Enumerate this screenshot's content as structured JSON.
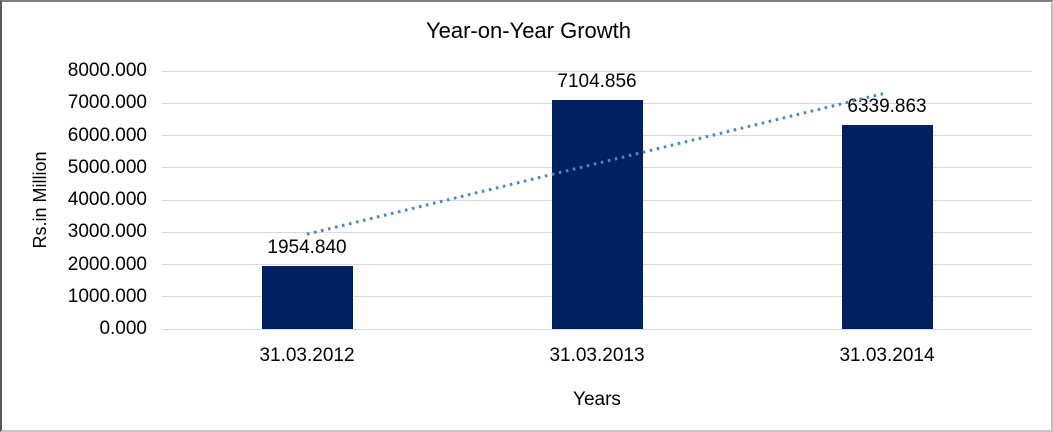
{
  "chart_data": {
    "type": "bar",
    "title": "Year-on-Year Growth",
    "xlabel": "Years",
    "ylabel": "Rs.in Million",
    "categories": [
      "31.03.2012",
      "31.03.2013",
      "31.03.2014"
    ],
    "values": [
      1954.84,
      7104.856,
      6339.863
    ],
    "data_labels": [
      "1954.840",
      "7104.856",
      "6339.863"
    ],
    "ylim": [
      0,
      8000
    ],
    "y_tick_step": 1000,
    "y_tick_labels": [
      "8000.000",
      "7000.000",
      "6000.000",
      "5000.000",
      "4000.000",
      "3000.000",
      "2000.000",
      "1000.000",
      "0.000"
    ],
    "grid": true,
    "legend": false,
    "trendline": {
      "type": "linear",
      "style": "dotted",
      "start_value": 2941,
      "end_value": 7326
    }
  },
  "colors": {
    "bar": "#002060",
    "trendline": "#4a86c8",
    "gridline": "#d9d9d9",
    "text": "#000000",
    "background": "#ffffff"
  }
}
